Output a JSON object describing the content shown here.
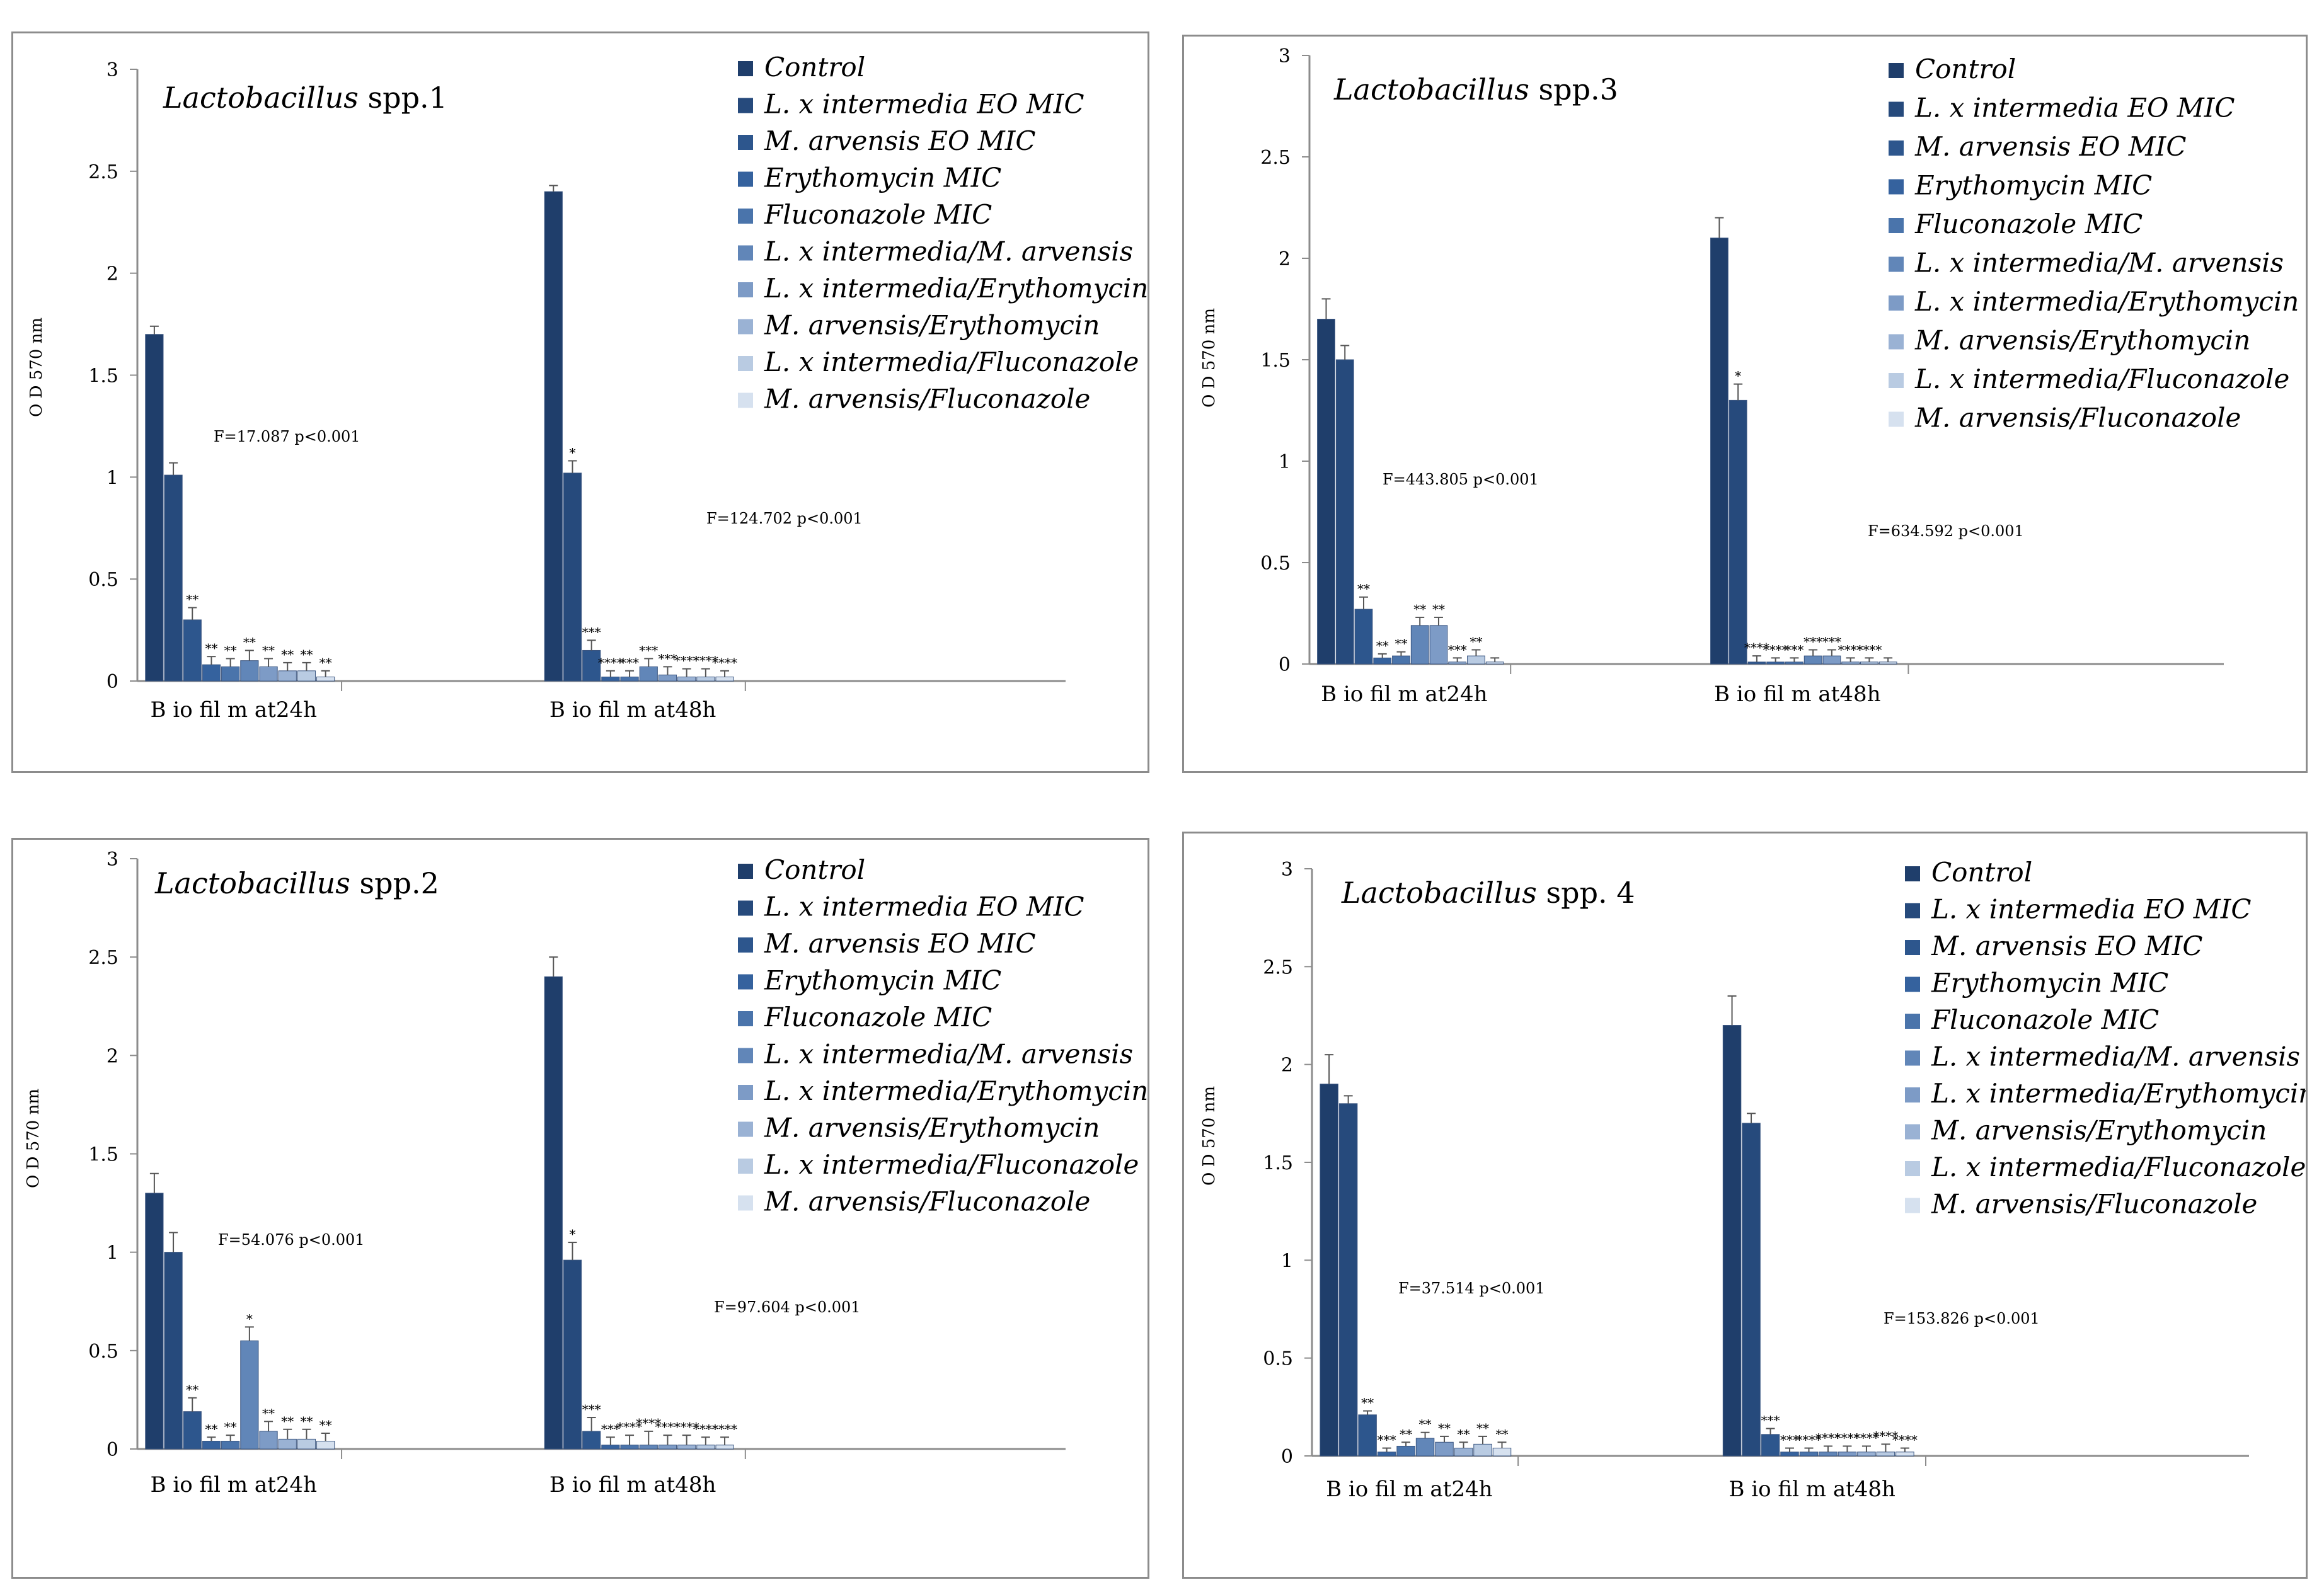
{
  "colors": {
    "palette": [
      "#1f3e6b",
      "#264a7c",
      "#2d568d",
      "#35629e",
      "#4a74ab",
      "#6186b8",
      "#7d9bc6",
      "#9ab2d4",
      "#b9cbe2",
      "#d6e1ef"
    ],
    "axis": "#8c8c8c",
    "text": "#000000"
  },
  "legend": {
    "items": [
      "Control",
      "L. x intermedia EO MIC",
      "M. arvensis EO MIC",
      "Erythomycin MIC",
      "Fluconazole MIC",
      "L. x intermedia/M. arvensis",
      "L. x intermedia/Erythomycin",
      "M. arvensis/Erythomycin",
      "L. x intermedia/Fluconazole",
      "M. arvensis/Fluconazole"
    ]
  },
  "chart_data": [
    {
      "type": "bar",
      "title_italic": "Lactobacillus",
      "title_rest": " spp.1",
      "ylabel": "O D  570 nm",
      "ylim": [
        0,
        3
      ],
      "yticks": [
        "0",
        "0.5",
        "1",
        "1.5",
        "2",
        "2.5",
        "3"
      ],
      "categories": [
        "B io fil m  at24h",
        "B io fil m  at48h"
      ],
      "series_names_ref": "legend.items",
      "values": [
        [
          1.7,
          1.01,
          0.3,
          0.08,
          0.07,
          0.1,
          0.07,
          0.05,
          0.05,
          0.02
        ],
        [
          2.4,
          1.02,
          0.15,
          0.02,
          0.02,
          0.07,
          0.03,
          0.02,
          0.02,
          0.02
        ]
      ],
      "errors": [
        [
          0.04,
          0.06,
          0.06,
          0.04,
          0.04,
          0.05,
          0.04,
          0.04,
          0.04,
          0.03
        ],
        [
          0.03,
          0.06,
          0.05,
          0.03,
          0.03,
          0.04,
          0.04,
          0.04,
          0.04,
          0.03
        ]
      ],
      "marks": [
        [
          "",
          "",
          "**",
          "**",
          "**",
          "**",
          "**",
          "**",
          "**",
          "**"
        ],
        [
          "",
          "*",
          "***",
          "****",
          "***",
          "***",
          "***",
          "****",
          "****",
          "****"
        ]
      ],
      "stats": [
        "F=17.087 p<0.001",
        "F=124.702 p<0.001"
      ]
    },
    {
      "type": "bar",
      "title_italic": "Lactobacillus",
      "title_rest": " spp.3",
      "ylabel": "O D  570 nm",
      "ylim": [
        0,
        3
      ],
      "yticks": [
        "0",
        "0.5",
        "1",
        "1.5",
        "2",
        "2.5",
        "3"
      ],
      "categories": [
        "B io fil m  at24h",
        "B io fil m  at48h"
      ],
      "series_names_ref": "legend.items",
      "values": [
        [
          1.7,
          1.5,
          0.27,
          0.03,
          0.04,
          0.19,
          0.19,
          0.01,
          0.04,
          0.01
        ],
        [
          2.1,
          1.3,
          0.01,
          0.01,
          0.01,
          0.04,
          0.04,
          0.01,
          0.01,
          0.01
        ]
      ],
      "errors": [
        [
          0.1,
          0.07,
          0.06,
          0.02,
          0.02,
          0.04,
          0.04,
          0.02,
          0.03,
          0.02
        ],
        [
          0.1,
          0.08,
          0.03,
          0.02,
          0.02,
          0.03,
          0.03,
          0.02,
          0.02,
          0.02
        ]
      ],
      "marks": [
        [
          "",
          "",
          "**",
          "**",
          "**",
          "**",
          "**",
          "***",
          "**",
          ""
        ],
        [
          "",
          "*",
          "****",
          "****",
          "***",
          "***",
          "***",
          "****",
          "****",
          ""
        ]
      ],
      "stats": [
        "F=443.805 p<0.001",
        "F=634.592 p<0.001"
      ]
    },
    {
      "type": "bar",
      "title_italic": "Lactobacillus",
      "title_rest": " spp.2",
      "ylabel": "O D  570 nm",
      "ylim": [
        0,
        3
      ],
      "yticks": [
        "0",
        "0.5",
        "1",
        "1.5",
        "2",
        "2.5",
        "3"
      ],
      "categories": [
        "B io fil m  at24h",
        "B io fil m  at48h"
      ],
      "series_names_ref": "legend.items",
      "values": [
        [
          1.3,
          1.0,
          0.19,
          0.04,
          0.04,
          0.55,
          0.09,
          0.05,
          0.05,
          0.04
        ],
        [
          2.4,
          0.96,
          0.09,
          0.02,
          0.02,
          0.02,
          0.02,
          0.02,
          0.02,
          0.02
        ]
      ],
      "errors": [
        [
          0.1,
          0.1,
          0.07,
          0.02,
          0.03,
          0.07,
          0.05,
          0.05,
          0.05,
          0.04
        ],
        [
          0.1,
          0.09,
          0.07,
          0.04,
          0.05,
          0.07,
          0.05,
          0.05,
          0.04,
          0.04
        ]
      ],
      "marks": [
        [
          "",
          "",
          "**",
          "**",
          "**",
          "*",
          "**",
          "**",
          "**",
          "**"
        ],
        [
          "",
          "*",
          "***",
          "***",
          "****",
          "****",
          "****",
          "****",
          "****",
          "****"
        ]
      ],
      "stats": [
        "F=54.076 p<0.001",
        "F=97.604 p<0.001"
      ]
    },
    {
      "type": "bar",
      "title_italic": "Lactobacillus",
      "title_rest": " spp. 4",
      "ylabel": "O D  570 nm",
      "ylim": [
        0,
        3
      ],
      "yticks": [
        "0",
        "0.5",
        "1",
        "1.5",
        "2",
        "2.5",
        "3"
      ],
      "categories": [
        "B io fil m  at24h",
        "B io fil m  at48h"
      ],
      "series_names_ref": "legend.items",
      "values": [
        [
          1.9,
          1.8,
          0.21,
          0.02,
          0.05,
          0.09,
          0.07,
          0.04,
          0.06,
          0.04
        ],
        [
          2.2,
          1.7,
          0.11,
          0.02,
          0.02,
          0.02,
          0.02,
          0.02,
          0.02,
          0.02
        ]
      ],
      "errors": [
        [
          0.15,
          0.04,
          0.02,
          0.02,
          0.02,
          0.03,
          0.03,
          0.03,
          0.04,
          0.03
        ],
        [
          0.15,
          0.05,
          0.03,
          0.02,
          0.02,
          0.03,
          0.03,
          0.03,
          0.04,
          0.02
        ]
      ],
      "marks": [
        [
          "",
          "",
          "**",
          "***",
          "**",
          "**",
          "**",
          "**",
          "**",
          "**"
        ],
        [
          "",
          "",
          "***",
          "***",
          "****",
          "****",
          "****",
          "****",
          "****",
          "****"
        ]
      ],
      "stats": [
        "F=37.514 p<0.001",
        "F=153.826 p<0.001"
      ]
    }
  ]
}
